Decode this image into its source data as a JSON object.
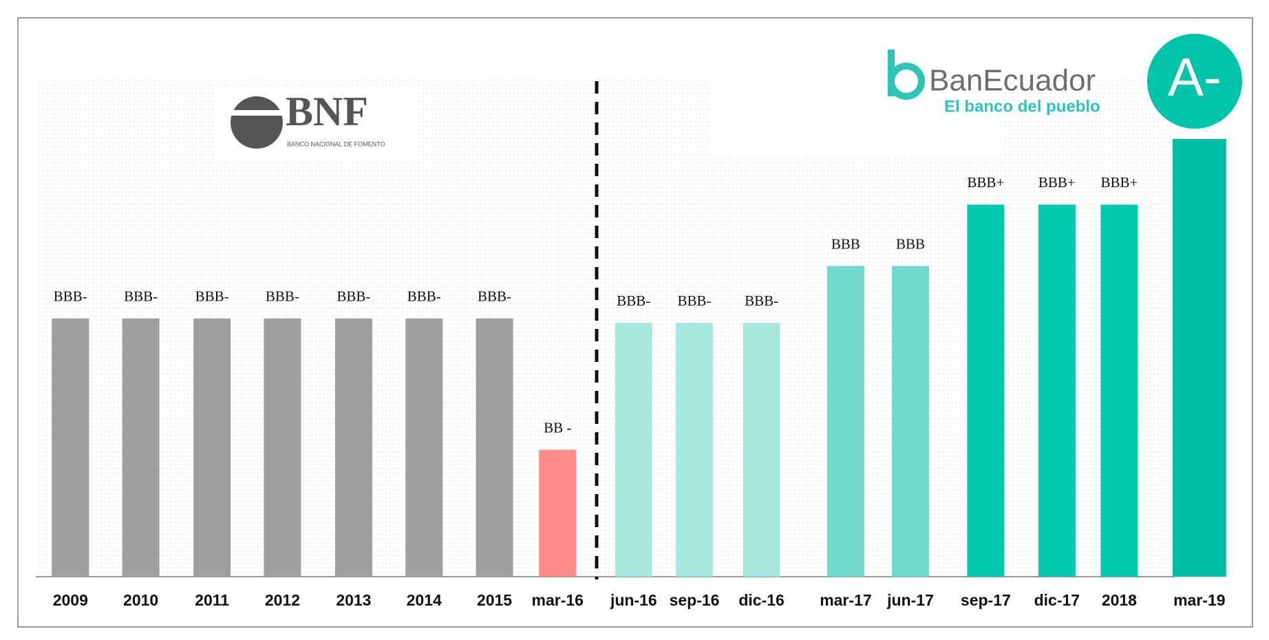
{
  "chart_data": {
    "type": "bar",
    "categories": [
      "2009",
      "2010",
      "2011",
      "2012",
      "2013",
      "2014",
      "2015",
      "mar-16",
      "jun-16",
      "sep-16",
      "dic-16",
      "mar-17",
      "jun-17",
      "sep-17",
      "dic-17",
      "2018",
      "mar-19"
    ],
    "values": [
      59,
      59,
      59,
      59,
      59,
      59,
      59,
      29,
      58,
      58,
      58,
      71,
      71,
      85,
      85,
      85,
      100
    ],
    "value_labels": [
      "BBB-",
      "BBB-",
      "BBB-",
      "BBB-",
      "BBB-",
      "BBB-",
      "BBB-",
      "BB -",
      "BBB-",
      "BBB-",
      "BBB-",
      "BBB",
      "BBB",
      "BBB+",
      "BBB+",
      "BBB+",
      "A-"
    ],
    "colors": [
      "#9e9e9e",
      "#9e9e9e",
      "#9e9e9e",
      "#9e9e9e",
      "#9e9e9e",
      "#9e9e9e",
      "#9e9e9e",
      "#ff8a8a",
      "#a6e8de",
      "#a6e8de",
      "#a6e8de",
      "#6fdacb",
      "#6fdacb",
      "#00c9b0",
      "#00c9b0",
      "#00c9b0",
      "#00bfa5"
    ],
    "ylim": [
      0,
      100
    ],
    "logos": [
      {
        "name": "BNF",
        "tagline": "BANCO NACIONAL DE FOMENTO"
      },
      {
        "name": "BanEcuador",
        "tagline": "El banco del pueblo"
      }
    ]
  }
}
